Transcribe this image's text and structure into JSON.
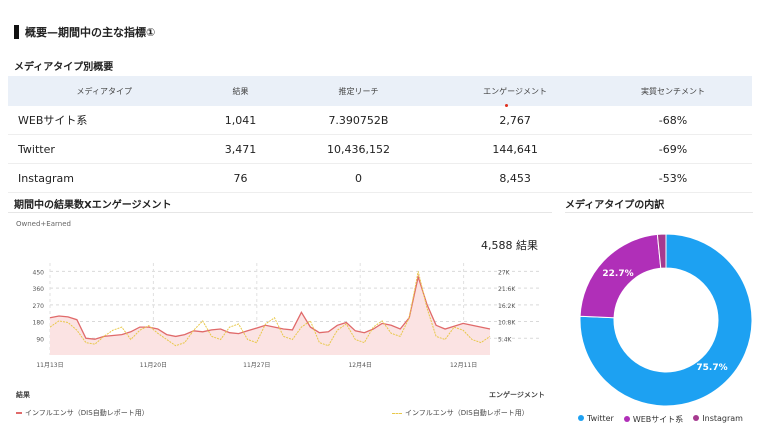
{
  "page_title": "概要—期間中の主な指標①",
  "summary": {
    "title": "メディアタイプ別概要",
    "headers": [
      "メディアタイプ",
      "結果",
      "推定リーチ",
      "エンゲージメント",
      "実質センチメント"
    ],
    "rows": [
      [
        "WEBサイト系",
        "1,041",
        "7.390752B",
        "2,767",
        "-68%"
      ],
      [
        "Twitter",
        "3,471",
        "10,436,152",
        "144,641",
        "-69%"
      ],
      [
        "Instagram",
        "76",
        "0",
        "8,453",
        "-53%"
      ]
    ]
  },
  "trend": {
    "title": "期間中の結果数Xエンゲージメント",
    "subtitle": "Owned+Earned",
    "total": "4,588 結果",
    "left_axis_title": "結果",
    "right_axis_title": "エンゲージメント",
    "legend_left": "インフルエンサ（DIS自動レポート用）",
    "legend_right": "インフルエンサ（DIS自動レポート用）"
  },
  "donut": {
    "title": "メディアタイプの内訳",
    "labels": [
      "75.7%",
      "22.7%"
    ],
    "legend": [
      "Twitter",
      "WEBサイト系",
      "Instagram"
    ],
    "colors": {
      "twitter": "#1da1f2",
      "web": "#b02fb8",
      "instagram": "#a63a8f"
    }
  },
  "chart_data": [
    {
      "type": "area",
      "title": "期間中の結果数Xエンゲージメント",
      "x_ticks": [
        "11月13日",
        "11月20日",
        "11月27日",
        "12月4日",
        "12月11日"
      ],
      "y_left_ticks": [
        "450",
        "360",
        "270",
        "180",
        "90"
      ],
      "y_right_ticks": [
        "27K",
        "21.6K",
        "16.2K",
        "10.8K",
        "5.4K"
      ],
      "ylim_left": [
        0,
        495
      ],
      "ylim_right": [
        0,
        29700
      ],
      "series": [
        {
          "name": "インフルエンサ（DIS自動レポート用）",
          "axis": "left",
          "color": "#e06a6a",
          "values": [
            200,
            210,
            205,
            190,
            90,
            85,
            100,
            105,
            110,
            125,
            150,
            150,
            140,
            110,
            100,
            110,
            130,
            125,
            135,
            140,
            120,
            115,
            130,
            145,
            160,
            150,
            140,
            135,
            230,
            150,
            120,
            125,
            160,
            175,
            130,
            120,
            140,
            170,
            160,
            140,
            200,
            420,
            270,
            160,
            140,
            155,
            170,
            160,
            150,
            140
          ]
        },
        {
          "name": "インフルエンサ（DIS自動レポート用）",
          "axis": "right",
          "color": "#e8c84a",
          "values": [
            9000,
            11000,
            10500,
            8000,
            4000,
            3500,
            6000,
            8000,
            9000,
            5000,
            8000,
            9500,
            7000,
            5000,
            3000,
            4000,
            8000,
            11000,
            6000,
            5000,
            9000,
            10000,
            5000,
            4000,
            10000,
            12000,
            6000,
            5000,
            9000,
            11000,
            4000,
            3000,
            8000,
            10000,
            5000,
            4000,
            9000,
            11000,
            7000,
            6000,
            12000,
            27000,
            15000,
            6000,
            5000,
            9000,
            8000,
            5000,
            4000,
            6000
          ]
        }
      ]
    },
    {
      "type": "pie",
      "title": "メディアタイプの内訳",
      "labels": [
        "Twitter",
        "WEBサイト系",
        "Instagram"
      ],
      "values": [
        75.7,
        22.7,
        1.6
      ],
      "colors": [
        "#1da1f2",
        "#b02fb8",
        "#a63a8f"
      ]
    }
  ]
}
